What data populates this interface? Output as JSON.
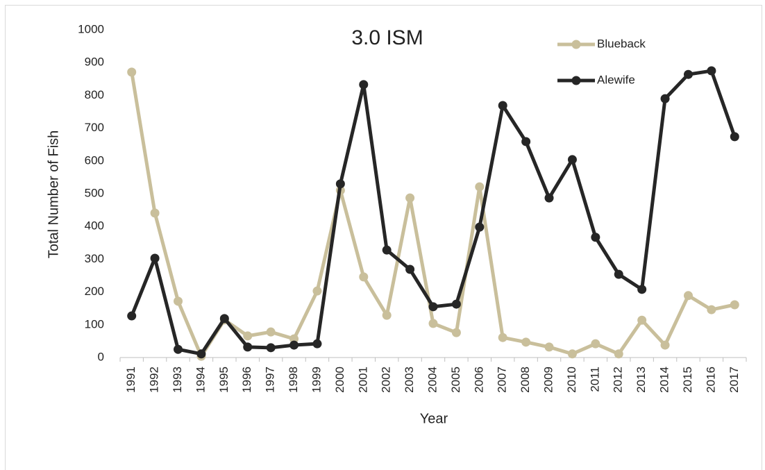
{
  "chart_data": {
    "type": "line",
    "title": "3.0 ISM",
    "x_label": "Year",
    "y_label": "Total Number of Fish",
    "categories": [
      "1991",
      "1992",
      "1993",
      "1994",
      "1995",
      "1996",
      "1997",
      "1998",
      "1999",
      "2000",
      "2001",
      "2002",
      "2003",
      "2004",
      "2005",
      "2006",
      "2007",
      "2008",
      "2009",
      "2010",
      "2011",
      "2012",
      "2013",
      "2014",
      "2015",
      "2016",
      "2017"
    ],
    "series": [
      {
        "name": "Blueback",
        "color": "#c9bf9b",
        "values": [
          871,
          441,
          172,
          4,
          115,
          66,
          78,
          57,
          203,
          510,
          246,
          129,
          487,
          104,
          76,
          521,
          61,
          47,
          32,
          11,
          42,
          11,
          114,
          38,
          189,
          146,
          161
        ]
      },
      {
        "name": "Alewife",
        "color": "#262626",
        "values": [
          127,
          303,
          25,
          11,
          119,
          32,
          30,
          38,
          42,
          530,
          833,
          328,
          269,
          155,
          163,
          398,
          769,
          659,
          487,
          604,
          367,
          254,
          208,
          790,
          864,
          875,
          674
        ]
      }
    ],
    "ylim": [
      0,
      1000
    ],
    "yticks": [
      0,
      100,
      200,
      300,
      400,
      500,
      600,
      700,
      800,
      900,
      1000
    ],
    "grid": false
  }
}
